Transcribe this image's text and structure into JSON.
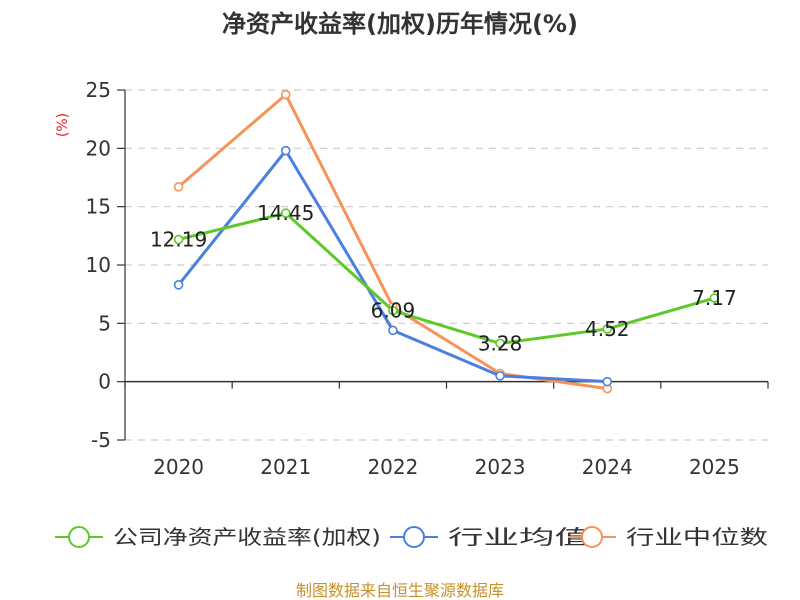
{
  "chart_data": {
    "type": "line",
    "title": "净资产收益率(加权)历年情况(%)",
    "ylabel": "(%)",
    "xlabel": "",
    "categories": [
      "2020",
      "2021",
      "2022",
      "2023",
      "2024",
      "2025"
    ],
    "ylim": [
      -5,
      25
    ],
    "yticks": [
      25,
      20,
      15,
      10,
      5,
      0,
      -5
    ],
    "grid": true,
    "legend_position": "bottom",
    "series": [
      {
        "name": "公司净资产收益率(加权)",
        "color": "#5ec82a",
        "values": [
          12.19,
          14.45,
          6.09,
          3.28,
          4.52,
          7.17
        ],
        "labels": [
          "12.19",
          "14.45",
          "6.09",
          "3.28",
          "4.52",
          "7.17"
        ]
      },
      {
        "name": "行业均值",
        "color": "#4a7fe0",
        "values": [
          8.3,
          19.8,
          4.4,
          0.5,
          0.0,
          null
        ]
      },
      {
        "name": "行业中位数",
        "color": "#f7935a",
        "values": [
          16.7,
          24.6,
          6.4,
          0.7,
          -0.6,
          null
        ]
      }
    ],
    "source": "制图数据来自恒生聚源数据库",
    "colors": {
      "unit": "#e8202a",
      "source": "#c9902a",
      "axis": "#333333",
      "grid": "#cccccc"
    }
  }
}
